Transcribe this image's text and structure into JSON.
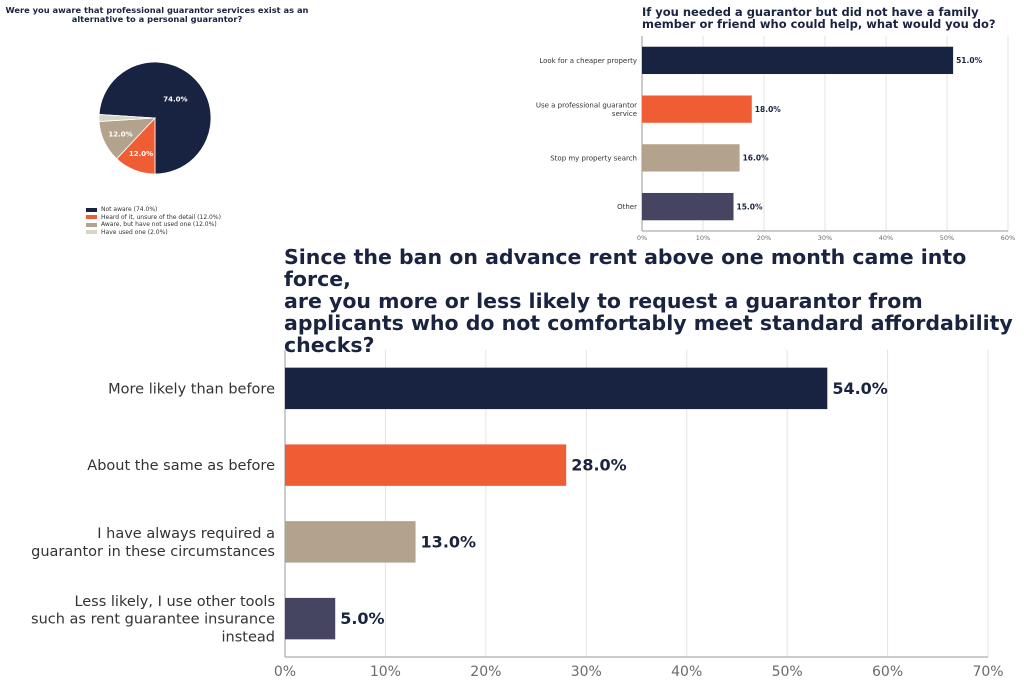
{
  "colors": {
    "navy": "#172341",
    "orange": "#ef5d34",
    "tan": "#b3a38c",
    "slate": "#464561",
    "pale": "#d8d4c8"
  },
  "chart_data": [
    {
      "type": "pie",
      "title": "Were you aware that professional guarantor services exist as an alternative to a personal guarantor?",
      "legend_position": "bottom",
      "slices": [
        {
          "label": "Not aware (74.0%)",
          "value": 74.0,
          "display": "74.0%",
          "color": "#172341"
        },
        {
          "label": "Heard of it, unsure of the detail (12.0%)",
          "value": 12.0,
          "display": "12.0%",
          "color": "#ef5d34"
        },
        {
          "label": "Aware, but have not used one (12.0%)",
          "value": 12.0,
          "display": "12.0%",
          "color": "#b3a38c"
        },
        {
          "label": "Have used one (2.0%)",
          "value": 2.0,
          "display": "",
          "color": "#d8d4c8"
        }
      ]
    },
    {
      "type": "bar",
      "orientation": "horizontal",
      "title": "If you needed a guarantor but did not have a family member or friend who could help, what would you do?",
      "categories": [
        "Look for a cheaper property",
        "Use a professional guarantor service",
        "Stop my property search",
        "Other"
      ],
      "category_lines": [
        [
          "Look for a cheaper property"
        ],
        [
          "Use a professional guarantor",
          "service"
        ],
        [
          "Stop my property search"
        ],
        [
          "Other"
        ]
      ],
      "values": [
        51.0,
        18.0,
        16.0,
        15.0
      ],
      "data_labels": [
        "51.0%",
        "18.0%",
        "16.0%",
        "15.0%"
      ],
      "colors": [
        "#172341",
        "#ef5d34",
        "#b3a38c",
        "#464561"
      ],
      "xlim": [
        0,
        60
      ],
      "ticks": [
        0,
        10,
        20,
        30,
        40,
        50,
        60
      ],
      "tick_labels": [
        "0%",
        "10%",
        "20%",
        "30%",
        "40%",
        "50%",
        "60%"
      ],
      "grid": true
    },
    {
      "type": "bar",
      "orientation": "horizontal",
      "title": "Since the ban on advance rent above one month came into force, are you more or less likely to request a guarantor from applicants who do not comfortably meet standard affordability checks?",
      "title_lines": [
        "Since the ban on advance rent above one month came into force,",
        "are you more or less likely to request a guarantor from",
        "applicants who do not comfortably meet standard affordability",
        "checks?"
      ],
      "categories": [
        "More likely than before",
        "About the same as before",
        "I have always required a guarantor in these circumstances",
        "Less likely, I use other tools such as rent guarantee insurance instead"
      ],
      "category_lines": [
        [
          "More likely than before"
        ],
        [
          "About the same as before"
        ],
        [
          "I have always required a",
          "guarantor in these circumstances"
        ],
        [
          "Less likely, I use other tools",
          "such as rent guarantee insurance",
          "instead"
        ]
      ],
      "values": [
        54.0,
        28.0,
        13.0,
        5.0
      ],
      "data_labels": [
        "54.0%",
        "28.0%",
        "13.0%",
        "5.0%"
      ],
      "colors": [
        "#172341",
        "#ef5d34",
        "#b3a38c",
        "#464561"
      ],
      "xlim": [
        0,
        70
      ],
      "ticks": [
        0,
        10,
        20,
        30,
        40,
        50,
        60,
        70
      ],
      "tick_labels": [
        "0%",
        "10%",
        "20%",
        "30%",
        "40%",
        "50%",
        "60%",
        "70%"
      ],
      "grid": true
    }
  ]
}
